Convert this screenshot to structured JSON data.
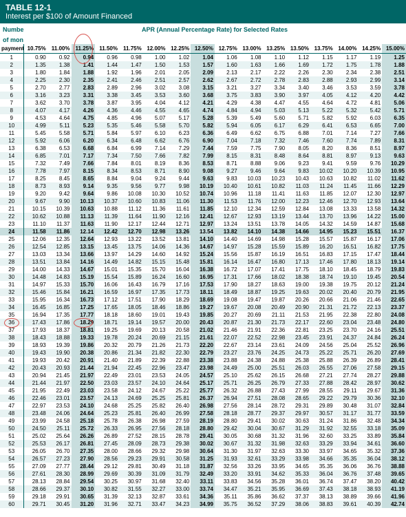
{
  "title": "TABLE 12-1",
  "subtitle": "Interest per $100 of Amount Financed",
  "header_left1": "Number",
  "header_left2": "of monthly",
  "header_left3": "payments",
  "header_right": "APR (Annual Percentage Rate) for Selected Rates",
  "rate_headers": [
    "10.75%",
    "11.00%",
    "11.25%",
    "11.50%",
    "11.75%",
    "12.00%",
    "12.25%",
    "12.50%",
    "12.75%",
    "13.00%",
    "13.25%",
    "13.50%",
    "13.75%",
    "14.00%",
    "14.25%",
    "15.00%"
  ],
  "highlight_rate_indices": [
    2,
    7,
    15
  ],
  "highlight_row_index": 23,
  "rows": [
    {
      "n": 1,
      "v": [
        "0.90",
        "0.92",
        "0.94",
        "0.96",
        "0.98",
        "1.00",
        "1.02",
        "1.04",
        "1.06",
        "1.08",
        "1.10",
        "1.12",
        "1.15",
        "1.17",
        "1.19",
        "1.25"
      ]
    },
    {
      "n": 2,
      "v": [
        "1.35",
        "1.38",
        "1.41",
        "1.44",
        "1.47",
        "1.50",
        "1.53",
        "1.57",
        "1.60",
        "1.63",
        "1.66",
        "1.69",
        "1.72",
        "1.75",
        "1.78",
        "1.88"
      ]
    },
    {
      "n": 3,
      "v": [
        "1.80",
        "1.84",
        "1.88",
        "1.92",
        "1.96",
        "2.01",
        "2.05",
        "2.09",
        "2.13",
        "2.17",
        "2.22",
        "2.26",
        "2.30",
        "2.34",
        "2.38",
        "2.51"
      ]
    },
    {
      "n": 4,
      "v": [
        "2.25",
        "2.30",
        "2.35",
        "2.41",
        "2.46",
        "2.51",
        "2.57",
        "2.62",
        "2.67",
        "2.72",
        "2.78",
        "2.83",
        "2.88",
        "2.93",
        "2.99",
        "3.14"
      ]
    },
    {
      "n": 5,
      "v": [
        "2.70",
        "2.77",
        "2.83",
        "2.89",
        "2.96",
        "3.02",
        "3.08",
        "3.15",
        "3.21",
        "3.27",
        "3.34",
        "3.40",
        "3.46",
        "3.53",
        "3.59",
        "3.78"
      ]
    },
    {
      "n": 6,
      "v": [
        "3.16",
        "3.23",
        "3.31",
        "3.38",
        "3.45",
        "3.53",
        "3.60",
        "3.68",
        "3.75",
        "3.83",
        "3.90",
        "3.97",
        "4.05",
        "4.12",
        "4.20",
        "4.42"
      ]
    },
    {
      "n": 7,
      "v": [
        "3.62",
        "3.70",
        "3.78",
        "3.87",
        "3.95",
        "4.04",
        "4.12",
        "4.21",
        "4.29",
        "4.38",
        "4.47",
        "4.55",
        "4.64",
        "4.72",
        "4.81",
        "5.06"
      ]
    },
    {
      "n": 8,
      "v": [
        "4.07",
        "4.17",
        "4.26",
        "4.36",
        "4.46",
        "4.55",
        "4.65",
        "4.74",
        "4.84",
        "4.94",
        "5.03",
        "5.13",
        "5.22",
        "5.32",
        "5.42",
        "5.71"
      ]
    },
    {
      "n": 9,
      "v": [
        "4.53",
        "4.64",
        "4.75",
        "4.85",
        "4.96",
        "5.07",
        "5.17",
        "5.28",
        "5.39",
        "5.49",
        "5.60",
        "5.71",
        "5.82",
        "5.92",
        "6.03",
        "6.35"
      ]
    },
    {
      "n": 10,
      "v": [
        "4.99",
        "5.11",
        "5.23",
        "5.35",
        "5.46",
        "5.58",
        "5.70",
        "5.82",
        "5.94",
        "6.05",
        "6.17",
        "6.29",
        "6.41",
        "6.53",
        "6.65",
        "7.00"
      ]
    },
    {
      "n": 11,
      "v": [
        "5.45",
        "5.58",
        "5.71",
        "5.84",
        "5.97",
        "6.10",
        "6.23",
        "6.36",
        "6.49",
        "6.62",
        "6.75",
        "6.88",
        "7.01",
        "7.14",
        "7.27",
        "7.66"
      ]
    },
    {
      "n": 12,
      "v": [
        "5.92",
        "6.06",
        "6.20",
        "6.34",
        "6.48",
        "6.62",
        "6.76",
        "6.90",
        "7.04",
        "7.18",
        "7.32",
        "7.46",
        "7.60",
        "7.74",
        "7.89",
        "8.31"
      ]
    },
    {
      "n": 13,
      "v": [
        "6.38",
        "6.53",
        "6.68",
        "6.84",
        "6.99",
        "7.14",
        "7.29",
        "7.44",
        "7.59",
        "7.75",
        "7.90",
        "8.05",
        "8.20",
        "8.36",
        "8.51",
        "8.97"
      ]
    },
    {
      "n": 14,
      "v": [
        "6.85",
        "7.01",
        "7.17",
        "7.34",
        "7.50",
        "7.66",
        "7.82",
        "7.99",
        "8.15",
        "8.31",
        "8.48",
        "8.64",
        "8.81",
        "8.97",
        "9.13",
        "9.63"
      ]
    },
    {
      "n": 15,
      "v": [
        "7.32",
        "7.49",
        "7.66",
        "7.84",
        "8.01",
        "8.19",
        "8.36",
        "8.53",
        "8.71",
        "8.88",
        "9.06",
        "9.23",
        "9.41",
        "9.59",
        "9.76",
        "10.29"
      ]
    },
    {
      "n": 16,
      "v": [
        "7.78",
        "7.97",
        "8.15",
        "8.34",
        "8.53",
        "8.71",
        "8.90",
        "9.08",
        "9.27",
        "9.46",
        "9.64",
        "9.83",
        "10.02",
        "10.20",
        "10.39",
        "10.95"
      ]
    },
    {
      "n": 17,
      "v": [
        "8.25",
        "8.45",
        "8.65",
        "8.84",
        "9.04",
        "9.24",
        "9.44",
        "9.63",
        "9.83",
        "10.03",
        "10.23",
        "10.43",
        "10.63",
        "10.82",
        "11.02",
        "11.62"
      ]
    },
    {
      "n": 18,
      "v": [
        "8.73",
        "8.93",
        "9.14",
        "9.35",
        "9.56",
        "9.77",
        "9.98",
        "10.19",
        "10.40",
        "10.61",
        "10.82",
        "11.03",
        "11.24",
        "11.45",
        "11.66",
        "12.29"
      ]
    },
    {
      "n": 19,
      "v": [
        "9.20",
        "9.42",
        "9.64",
        "9.86",
        "10.08",
        "10.30",
        "10.52",
        "10.74",
        "10.96",
        "11.18",
        "11.41",
        "11.63",
        "11.85",
        "12.07",
        "12.30",
        "12.97"
      ]
    },
    {
      "n": 20,
      "v": [
        "9.67",
        "9.90",
        "10.13",
        "10.37",
        "10.60",
        "10.83",
        "11.06",
        "11.30",
        "11.53",
        "11.76",
        "12.00",
        "12.23",
        "12.46",
        "12.70",
        "12.93",
        "13.64"
      ]
    },
    {
      "n": 21,
      "v": [
        "10.15",
        "10.39",
        "10.63",
        "10.88",
        "11.12",
        "11.36",
        "11.61",
        "11.85",
        "12.10",
        "12.34",
        "12.59",
        "12.84",
        "13.08",
        "13.33",
        "13.58",
        "14.32"
      ]
    },
    {
      "n": 22,
      "v": [
        "10.62",
        "10.88",
        "11.13",
        "11.39",
        "11.64",
        "11.90",
        "12.16",
        "12.41",
        "12.67",
        "12.93",
        "13.19",
        "13.44",
        "13.70",
        "13.96",
        "14.22",
        "15.00"
      ]
    },
    {
      "n": 23,
      "v": [
        "11.10",
        "11.37",
        "11.63",
        "11.90",
        "12.17",
        "12.44",
        "12.71",
        "12.97",
        "13.24",
        "13.51",
        "13.78",
        "14.05",
        "14.32",
        "14.59",
        "14.87",
        "15.68"
      ]
    },
    {
      "n": 24,
      "v": [
        "11.58",
        "11.86",
        "12.14",
        "12.42",
        "12.70",
        "12.98",
        "13.26",
        "13.54",
        "13.82",
        "14.10",
        "14.38",
        "14.66",
        "14.95",
        "15.23",
        "15.51",
        "16.37"
      ]
    },
    {
      "n": 25,
      "v": [
        "12.06",
        "12.35",
        "12.64",
        "12.93",
        "13.22",
        "13.52",
        "13.81",
        "14.10",
        "14.40",
        "14.69",
        "14.98",
        "15.28",
        "15.57",
        "15.87",
        "16.17",
        "17.06"
      ]
    },
    {
      "n": 26,
      "v": [
        "12.54",
        "12.85",
        "13.15",
        "13.45",
        "13.75",
        "14.06",
        "14.36",
        "14.67",
        "14.97",
        "15.28",
        "15.59",
        "15.89",
        "16.20",
        "16.51",
        "16.82",
        "17.75"
      ]
    },
    {
      "n": 27,
      "v": [
        "13.03",
        "13.34",
        "13.66",
        "13.97",
        "14.29",
        "14.60",
        "14.92",
        "15.24",
        "15.56",
        "15.87",
        "16.19",
        "16.51",
        "16.83",
        "17.15",
        "17.47",
        "18.44"
      ]
    },
    {
      "n": 28,
      "v": [
        "13.51",
        "13.84",
        "14.16",
        "14.49",
        "14.82",
        "15.15",
        "15.48",
        "15.81",
        "16.14",
        "16.47",
        "16.80",
        "17.13",
        "17.46",
        "17.80",
        "18.13",
        "19.14"
      ]
    },
    {
      "n": 29,
      "v": [
        "14.00",
        "14.33",
        "14.67",
        "15.01",
        "15.35",
        "15.70",
        "16.04",
        "16.38",
        "16.72",
        "17.07",
        "17.41",
        "17.75",
        "18.10",
        "18.45",
        "18.79",
        "19.83"
      ]
    },
    {
      "n": 30,
      "v": [
        "14.48",
        "14.83",
        "15.19",
        "15.54",
        "15.89",
        "16.24",
        "16.60",
        "16.95",
        "17.31",
        "17.66",
        "18.02",
        "18.38",
        "18.74",
        "19.10",
        "19.45",
        "20.54"
      ]
    },
    {
      "n": 31,
      "v": [
        "14.97",
        "15.33",
        "15.70",
        "16.06",
        "16.43",
        "16.79",
        "17.16",
        "17.53",
        "17.90",
        "18.27",
        "18.63",
        "19.00",
        "19.38",
        "19.75",
        "20.12",
        "21.24"
      ]
    },
    {
      "n": 32,
      "v": [
        "15.46",
        "15.84",
        "16.21",
        "16.59",
        "16.97",
        "17.35",
        "17.73",
        "18.11",
        "18.49",
        "18.87",
        "19.25",
        "19.63",
        "20.02",
        "20.40",
        "20.79",
        "21.95"
      ]
    },
    {
      "n": 33,
      "v": [
        "15.95",
        "16.34",
        "16.73",
        "17.12",
        "17.51",
        "17.90",
        "18.29",
        "18.69",
        "19.08",
        "19.47",
        "19.87",
        "20.26",
        "20.66",
        "21.06",
        "21.46",
        "22.65"
      ]
    },
    {
      "n": 34,
      "v": [
        "16.45",
        "16.85",
        "17.25",
        "17.65",
        "18.05",
        "18.46",
        "18.86",
        "19.27",
        "19.67",
        "20.08",
        "20.49",
        "20.90",
        "21.31",
        "21.72",
        "22.13",
        "23.37"
      ]
    },
    {
      "n": 35,
      "v": [
        "16.94",
        "17.35",
        "17.77",
        "18.18",
        "18.60",
        "19.01",
        "19.43",
        "19.85",
        "20.27",
        "20.69",
        "21.11",
        "21.53",
        "21.95",
        "22.38",
        "22.80",
        "24.08"
      ]
    },
    {
      "n": 36,
      "v": [
        "17.43",
        "17.86",
        "18.29",
        "18.71",
        "19.14",
        "19.57",
        "20.00",
        "20.43",
        "20.87",
        "21.30",
        "21.73",
        "22.17",
        "22.60",
        "23.04",
        "23.48",
        "24.80"
      ]
    },
    {
      "n": 37,
      "v": [
        "17.93",
        "18.37",
        "18.81",
        "19.25",
        "19.69",
        "20.13",
        "20.58",
        "21.02",
        "21.46",
        "21.91",
        "22.36",
        "22.81",
        "23.25",
        "23.70",
        "24.16",
        "25.51"
      ]
    },
    {
      "n": 38,
      "v": [
        "18.43",
        "18.88",
        "19.33",
        "19.78",
        "20.24",
        "20.69",
        "21.15",
        "21.61",
        "22.07",
        "22.52",
        "22.98",
        "23.45",
        "23.91",
        "24.37",
        "24.84",
        "26.24"
      ]
    },
    {
      "n": 39,
      "v": [
        "18.93",
        "19.39",
        "19.86",
        "20.32",
        "20.79",
        "21.26",
        "21.73",
        "22.20",
        "22.67",
        "23.14",
        "23.61",
        "24.09",
        "24.56",
        "25.04",
        "25.52",
        "26.96"
      ]
    },
    {
      "n": 40,
      "v": [
        "19.43",
        "19.90",
        "20.38",
        "20.86",
        "21.34",
        "21.82",
        "22.30",
        "22.79",
        "23.27",
        "23.76",
        "24.25",
        "24.73",
        "25.22",
        "25.71",
        "26.20",
        "27.69"
      ]
    },
    {
      "n": 41,
      "v": [
        "19.93",
        "20.42",
        "20.91",
        "21.40",
        "21.89",
        "22.39",
        "22.88",
        "23.38",
        "23.88",
        "24.38",
        "24.88",
        "25.38",
        "25.88",
        "26.39",
        "26.89",
        "28.41"
      ]
    },
    {
      "n": 42,
      "v": [
        "20.43",
        "20.93",
        "21.44",
        "21.94",
        "22.45",
        "22.96",
        "23.47",
        "23.98",
        "24.49",
        "25.00",
        "25.51",
        "26.03",
        "26.55",
        "27.06",
        "27.58",
        "29.15"
      ]
    },
    {
      "n": 43,
      "v": [
        "20.94",
        "21.45",
        "21.97",
        "22.49",
        "23.01",
        "23.53",
        "24.05",
        "24.57",
        "25.10",
        "25.62",
        "26.15",
        "26.68",
        "27.21",
        "27.74",
        "28.27",
        "29.88"
      ]
    },
    {
      "n": 44,
      "v": [
        "21.44",
        "21.97",
        "22.50",
        "23.03",
        "23.57",
        "24.10",
        "24.64",
        "25.17",
        "25.71",
        "26.25",
        "26.79",
        "27.33",
        "27.88",
        "28.42",
        "28.97",
        "30.62"
      ]
    },
    {
      "n": 45,
      "v": [
        "21.95",
        "22.49",
        "23.03",
        "23.58",
        "24.12",
        "24.67",
        "25.22",
        "25.77",
        "26.32",
        "26.88",
        "27.43",
        "27.99",
        "28.55",
        "29.11",
        "29.67",
        "31.36"
      ]
    },
    {
      "n": 46,
      "v": [
        "22.46",
        "23.01",
        "23.57",
        "24.13",
        "24.69",
        "25.25",
        "25.81",
        "26.37",
        "26.94",
        "27.51",
        "28.08",
        "28.65",
        "29.22",
        "29.79",
        "30.36",
        "32.10"
      ]
    },
    {
      "n": 47,
      "v": [
        "22.97",
        "23.53",
        "24.10",
        "24.68",
        "25.25",
        "25.82",
        "26.40",
        "26.98",
        "27.56",
        "28.14",
        "28.72",
        "29.31",
        "29.89",
        "30.48",
        "31.07",
        "32.84"
      ]
    },
    {
      "n": 48,
      "v": [
        "23.48",
        "24.06",
        "24.64",
        "25.23",
        "25.81",
        "26.40",
        "26.99",
        "27.58",
        "28.18",
        "28.77",
        "29.37",
        "29.97",
        "30.57",
        "31.17",
        "31.77",
        "33.59"
      ]
    },
    {
      "n": 49,
      "v": [
        "23.99",
        "24.58",
        "25.18",
        "25.78",
        "26.38",
        "26.98",
        "27.59",
        "28.19",
        "28.80",
        "29.41",
        "30.02",
        "30.63",
        "31.24",
        "31.86",
        "32.48",
        "34.34"
      ]
    },
    {
      "n": 50,
      "v": [
        "24.50",
        "25.11",
        "25.72",
        "26.33",
        "26.95",
        "27.56",
        "28.18",
        "28.80",
        "29.42",
        "30.04",
        "30.67",
        "31.29",
        "31.92",
        "32.55",
        "33.18",
        "35.09"
      ]
    },
    {
      "n": 51,
      "v": [
        "25.02",
        "25.64",
        "26.26",
        "26.89",
        "27.52",
        "28.15",
        "28.78",
        "29.41",
        "30.05",
        "30.68",
        "31.32",
        "31.96",
        "32.60",
        "33.25",
        "33.89",
        "35.84"
      ]
    },
    {
      "n": 52,
      "v": [
        "25.53",
        "26.17",
        "26.81",
        "27.45",
        "28.09",
        "28.73",
        "29.38",
        "30.02",
        "30.67",
        "31.32",
        "31.98",
        "32.63",
        "33.29",
        "33.94",
        "34.61",
        "36.60"
      ]
    },
    {
      "n": 53,
      "v": [
        "26.05",
        "26.70",
        "27.35",
        "28.00",
        "28.66",
        "29.32",
        "29.98",
        "30.64",
        "31.30",
        "31.97",
        "32.63",
        "33.30",
        "33.97",
        "34.65",
        "35.32",
        "37.36"
      ]
    },
    {
      "n": 54,
      "v": [
        "26.57",
        "27.23",
        "27.90",
        "28.56",
        "29.23",
        "29.91",
        "30.58",
        "31.25",
        "31.93",
        "32.61",
        "33.29",
        "33.98",
        "34.66",
        "35.35",
        "36.04",
        "38.12"
      ]
    },
    {
      "n": 55,
      "v": [
        "27.09",
        "27.77",
        "28.44",
        "29.12",
        "29.81",
        "30.49",
        "31.18",
        "31.87",
        "32.56",
        "33.26",
        "33.95",
        "34.65",
        "35.35",
        "36.06",
        "36.76",
        "38.88"
      ]
    },
    {
      "n": 56,
      "v": [
        "27.61",
        "28.30",
        "28.99",
        "29.69",
        "30.39",
        "31.09",
        "31.79",
        "32.49",
        "33.20",
        "33.91",
        "34.62",
        "35.33",
        "36.04",
        "36.76",
        "37.48",
        "39.65"
      ]
    },
    {
      "n": 57,
      "v": [
        "28.13",
        "28.84",
        "29.54",
        "30.25",
        "30.97",
        "31.68",
        "32.40",
        "33.11",
        "33.83",
        "34.56",
        "35.28",
        "36.01",
        "36.74",
        "37.47",
        "38.20",
        "40.42"
      ]
    },
    {
      "n": 58,
      "v": [
        "28.66",
        "29.37",
        "30.10",
        "30.82",
        "31.55",
        "32.27",
        "33.00",
        "33.74",
        "34.47",
        "35.21",
        "35.95",
        "36.69",
        "37.43",
        "38.18",
        "38.93",
        "41.19"
      ]
    },
    {
      "n": 59,
      "v": [
        "29.18",
        "29.91",
        "30.65",
        "31.39",
        "32.13",
        "32.87",
        "33.61",
        "34.36",
        "35.11",
        "35.86",
        "36.62",
        "37.37",
        "38.13",
        "38.89",
        "39.66",
        "41.96"
      ]
    },
    {
      "n": 60,
      "v": [
        "29.71",
        "30.45",
        "31.20",
        "31.96",
        "32.71",
        "33.47",
        "34.23",
        "34.99",
        "35.75",
        "36.52",
        "37.29",
        "38.06",
        "38.83",
        "39.61",
        "40.39",
        "42.74"
      ]
    }
  ],
  "circle1_payment": 36,
  "circle2_col_header": "11.25%",
  "circle3_value": "18.29",
  "circle_color": "#d9534f",
  "circle_radius_header": 16,
  "circle_radius_row": 10,
  "header_bg": "#006666",
  "even_row_bg": "#e8f3f3",
  "highlight_bg": "#c8dede"
}
